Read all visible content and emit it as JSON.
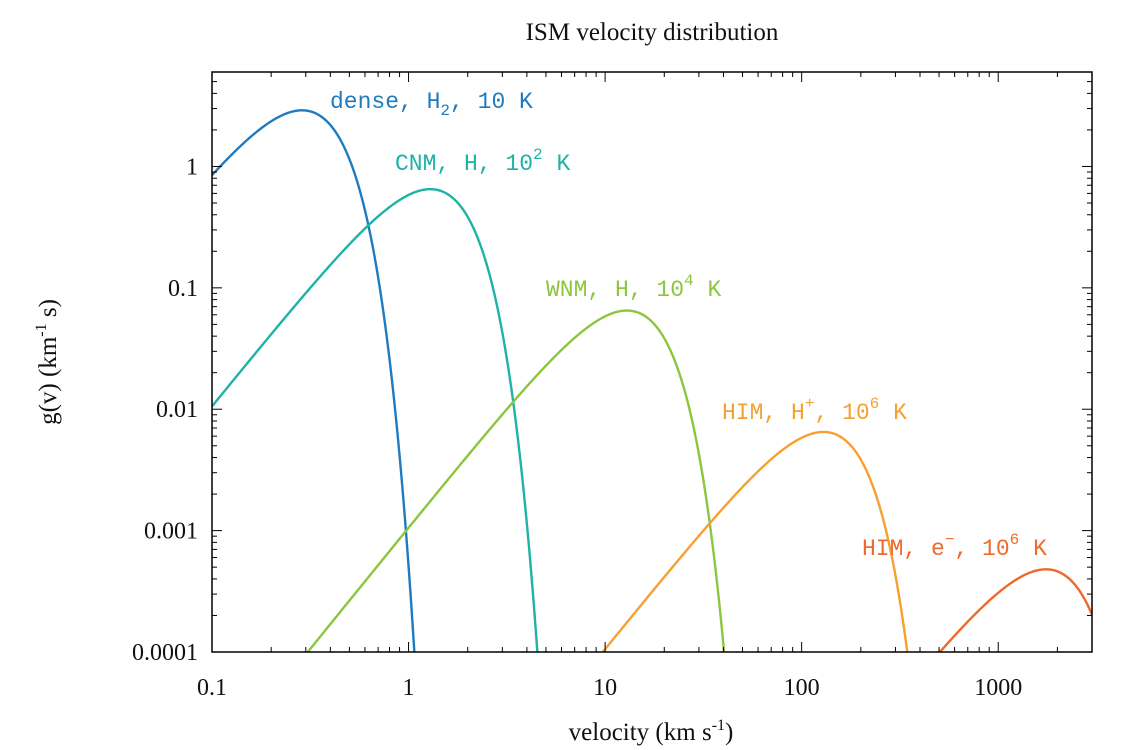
{
  "chart_data": {
    "type": "line",
    "title": "ISM velocity distribution",
    "xlabel": {
      "main": "velocity (km s",
      "sup": "-1",
      "tail": ")"
    },
    "ylabel": {
      "main": "g(v) (km",
      "sup": "-1",
      "tail": " s)"
    },
    "xscale": "log",
    "yscale": "log",
    "xlim": [
      0.1,
      3000
    ],
    "ylim": [
      0.0001,
      6
    ],
    "xticks": [
      {
        "value": 0.1,
        "label": "0.1"
      },
      {
        "value": 1,
        "label": "1"
      },
      {
        "value": 10,
        "label": "10"
      },
      {
        "value": 100,
        "label": "100"
      },
      {
        "value": 1000,
        "label": "1000"
      }
    ],
    "yticks": [
      {
        "value": 0.0001,
        "label": "0.0001"
      },
      {
        "value": 0.001,
        "label": "0.001"
      },
      {
        "value": 0.01,
        "label": "0.01"
      },
      {
        "value": 0.1,
        "label": "0.1"
      },
      {
        "value": 1,
        "label": "1"
      }
    ],
    "grid": false,
    "series": [
      {
        "name": "dense, H2, 10 K",
        "label": {
          "pre": "dense, H",
          "mark": "2",
          "mark_kind": "sub",
          "post": ", 10 K"
        },
        "color": "#1f7bbf",
        "peak_v": 0.287,
        "peak_g": 2.9
      },
      {
        "name": "CNM, H, 10^2 K",
        "label": {
          "pre": "CNM, H, 10",
          "mark": "2",
          "mark_kind": "sup",
          "post": " K"
        },
        "color": "#1fb2a6",
        "peak_v": 1.29,
        "peak_g": 0.65
      },
      {
        "name": "WNM, H, 10^4 K",
        "label": {
          "pre": "WNM, H, 10",
          "mark": "4",
          "mark_kind": "sup",
          "post": " K"
        },
        "color": "#8cc63f",
        "peak_v": 12.9,
        "peak_g": 0.065
      },
      {
        "name": "HIM, H+, 10^6 K",
        "label": {
          "pre": "HIM, H",
          "mark": "+",
          "mark_kind": "sup",
          "post": ", 10",
          "mark2": "6",
          "post2": " K"
        },
        "color": "#f7a032",
        "peak_v": 129,
        "peak_g": 0.0065
      },
      {
        "name": "HIM, e-, 10^6 K",
        "label": {
          "pre": "HIM, e",
          "mark": "−",
          "mark_kind": "sup",
          "post": ", 10",
          "mark2": "6",
          "post2": " K"
        },
        "color": "#ef6a2a",
        "peak_v": 1750,
        "peak_g": 0.00048
      }
    ]
  }
}
